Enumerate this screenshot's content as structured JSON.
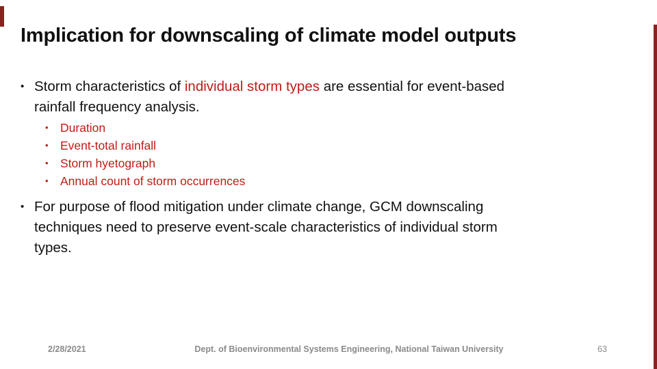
{
  "slide": {
    "bullet_char": "•",
    "title": "Implication for downscaling of climate model outputs",
    "bullet1": {
      "line1_pre": "Storm characteristics of ",
      "line1_highlight": "individual storm types",
      "line1_post": " are essential for event-based",
      "line2": "rainfall frequency analysis.",
      "sub_bullets": [
        "Duration",
        "Event-total rainfall",
        "Storm hyetograph",
        "Annual count of storm occurrences"
      ]
    },
    "bullet2": {
      "line1": "For purpose of flood mitigation under climate change, GCM downscaling",
      "line2": "techniques need to preserve event-scale characteristics of individual storm",
      "line3": "types."
    },
    "footer": {
      "date": "2/28/2021",
      "department": "Dept. of Bioenvironmental Systems Engineering, National Taiwan University",
      "page_number": "63"
    },
    "colors": {
      "accent_red_text": "#c11b14",
      "accent_bar_maroon": "#8b2220",
      "body_text": "#111111",
      "footer_gray": "#8a8a8a",
      "background": "#ffffff"
    }
  }
}
